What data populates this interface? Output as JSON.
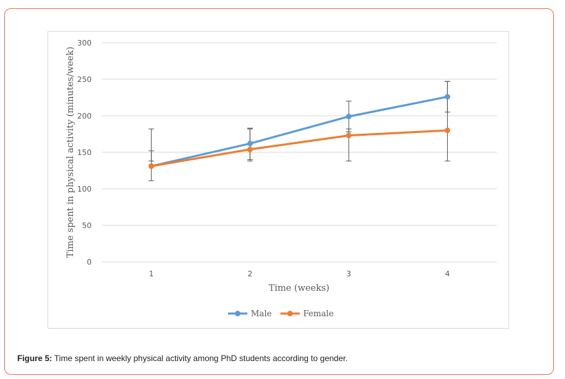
{
  "chart_data": {
    "type": "line",
    "xlabel": "Time (weeks)",
    "ylabel": "Time spent in physical activity (minutes/week)",
    "x": [
      "1",
      "2",
      "3",
      "4"
    ],
    "ylim": [
      0,
      300
    ],
    "yticks": [
      "0",
      "50",
      "100",
      "150",
      "200",
      "250",
      "300"
    ],
    "grid": true,
    "legend_position": "bottom",
    "series": [
      {
        "name": "Male",
        "color": "#5b9bd5",
        "values": [
          131,
          162,
          199,
          226
        ],
        "error_low": [
          111,
          140,
          178,
          205
        ],
        "error_high": [
          152,
          183,
          220,
          247
        ]
      },
      {
        "name": "Female",
        "color": "#ed7d31",
        "values": [
          131,
          154,
          173,
          180
        ],
        "error_low": [
          138,
          138,
          138,
          138
        ],
        "error_high": [
          182,
          182,
          182,
          247
        ]
      }
    ]
  },
  "caption": {
    "label": "Figure 5:",
    "text": " Time spent in weekly physical activity among PhD students according to gender."
  }
}
